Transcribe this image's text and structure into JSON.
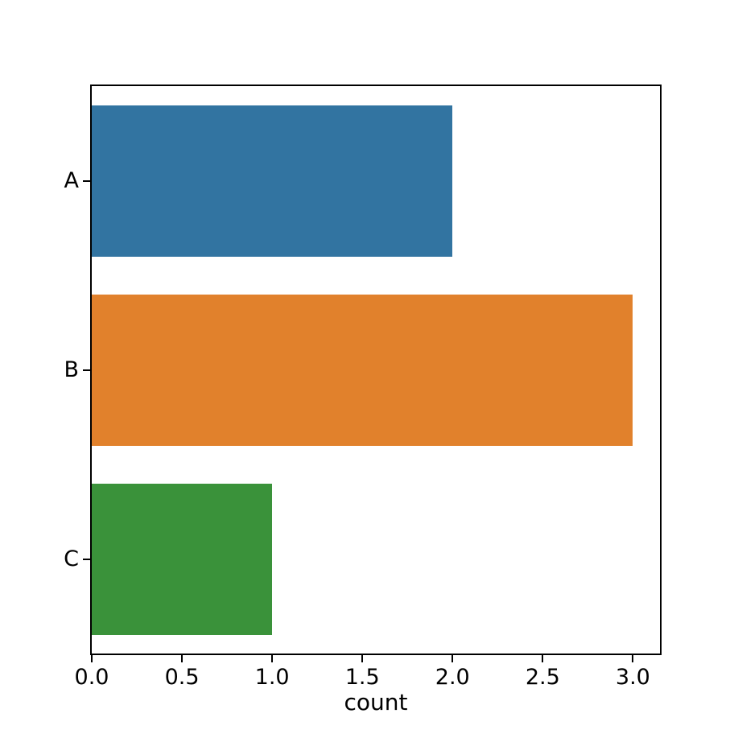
{
  "chart_data": {
    "type": "bar",
    "orientation": "horizontal",
    "title": "",
    "xlabel": "count",
    "ylabel": "",
    "categories": [
      "A",
      "B",
      "C"
    ],
    "values": [
      2,
      3,
      1
    ],
    "bar_colors": [
      "#3274a1",
      "#e1812c",
      "#3a923a"
    ],
    "xlim": [
      0,
      3.15
    ],
    "xticks": [
      0,
      0.5,
      1,
      1.5,
      2,
      2.5,
      3
    ],
    "xtick_labels": [
      "0.0",
      "0.5",
      "1.0",
      "1.5",
      "2.0",
      "2.5",
      "3.0"
    ],
    "bar_relative_height": 0.8,
    "grid": false,
    "legend_position": "none"
  },
  "colors": {
    "background": "#ffffff",
    "spine": "#000000",
    "text": "#000000"
  }
}
